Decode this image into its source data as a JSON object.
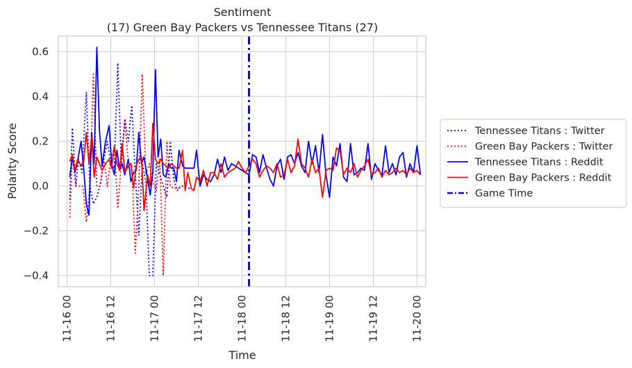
{
  "chart_data": {
    "type": "line",
    "title": "Sentiment",
    "subtitle": "(17) Green Bay Packers vs Tennessee Titans (27)",
    "xlabel": "Time",
    "ylabel": "Polarity Score",
    "grid": true,
    "legend_position": "right",
    "xlim": [
      -0.1,
      4.1
    ],
    "ylim": [
      -0.45,
      0.67
    ],
    "xticks": [
      {
        "v": 0.0,
        "label": "11-16 00"
      },
      {
        "v": 0.5,
        "label": "11-16 12"
      },
      {
        "v": 1.0,
        "label": "11-17 00"
      },
      {
        "v": 1.5,
        "label": "11-17 12"
      },
      {
        "v": 2.0,
        "label": "11-18 00"
      },
      {
        "v": 2.5,
        "label": "11-18 12"
      },
      {
        "v": 3.0,
        "label": "11-19 00"
      },
      {
        "v": 3.5,
        "label": "11-19 12"
      },
      {
        "v": 4.0,
        "label": "11-20 00"
      }
    ],
    "yticks": [
      {
        "v": -0.4,
        "label": "−0.4"
      },
      {
        "v": -0.2,
        "label": "−0.2"
      },
      {
        "v": 0.0,
        "label": "0.0"
      },
      {
        "v": 0.2,
        "label": "0.2"
      },
      {
        "v": 0.4,
        "label": "0.4"
      },
      {
        "v": 0.6,
        "label": "0.6"
      }
    ],
    "game_time": 2.08,
    "series": [
      {
        "name": "Tennessee Titans : Twitter",
        "color": "#0000ff",
        "style": "dotted",
        "x": [
          0.03,
          0.06,
          0.1,
          0.13,
          0.17,
          0.22,
          0.26,
          0.3,
          0.34,
          0.38,
          0.42,
          0.46,
          0.5,
          0.54,
          0.58,
          0.62,
          0.66,
          0.7,
          0.74,
          0.78,
          0.82,
          0.86,
          0.9,
          0.94,
          0.98,
          1.02,
          1.06,
          1.1,
          1.14,
          1.18,
          1.22,
          1.26,
          1.3,
          1.34,
          1.38,
          1.42
        ],
        "y": [
          -0.06,
          0.26,
          0.0,
          0.12,
          0.06,
          0.42,
          0.0,
          -0.08,
          -0.05,
          0.01,
          0.12,
          0.2,
          0.1,
          0.08,
          0.55,
          0.1,
          0.3,
          0.2,
          0.36,
          0.05,
          -0.22,
          0.1,
          0.02,
          -0.4,
          -0.4,
          0.1,
          0.05,
          0.0,
          -0.05,
          0.2,
          0.03,
          -0.02,
          0.0,
          0.0,
          -0.01,
          -0.01
        ]
      },
      {
        "name": "Green Bay Packers : Twitter",
        "color": "#ff0000",
        "style": "dotted",
        "x": [
          0.03,
          0.06,
          0.1,
          0.14,
          0.18,
          0.22,
          0.26,
          0.3,
          0.34,
          0.38,
          0.42,
          0.46,
          0.5,
          0.54,
          0.58,
          0.62,
          0.66,
          0.7,
          0.74,
          0.78,
          0.82,
          0.86,
          0.9,
          0.94,
          0.98,
          1.02,
          1.06,
          1.1,
          1.14,
          1.18,
          1.22,
          1.26,
          1.3
        ],
        "y": [
          -0.14,
          0.14,
          0.0,
          0.0,
          0.0,
          -0.16,
          0.0,
          0.5,
          0.0,
          0.0,
          0.12,
          0.0,
          0.12,
          0.17,
          -0.1,
          0.1,
          0.3,
          0.1,
          0.1,
          -0.3,
          0.0,
          0.5,
          0.05,
          0.1,
          0.02,
          -0.02,
          0.12,
          -0.4,
          0.2,
          0.0,
          -0.01,
          -0.01,
          -0.01
        ]
      },
      {
        "name": "Tennessee Titans : Reddit",
        "color": "#0000ff",
        "style": "solid",
        "x": [
          0.03,
          0.06,
          0.09,
          0.12,
          0.16,
          0.19,
          0.22,
          0.25,
          0.28,
          0.31,
          0.34,
          0.37,
          0.4,
          0.44,
          0.48,
          0.51,
          0.54,
          0.57,
          0.6,
          0.63,
          0.66,
          0.7,
          0.73,
          0.76,
          0.79,
          0.82,
          0.85,
          0.88,
          0.92,
          0.95,
          0.98,
          1.01,
          1.04,
          1.07,
          1.1,
          1.13,
          1.16,
          1.19,
          1.22,
          1.25,
          1.28,
          1.32,
          1.35,
          1.38,
          1.42,
          1.45,
          1.48,
          1.52,
          1.56,
          1.6,
          1.64,
          1.68,
          1.72,
          1.76,
          1.8,
          1.84,
          1.88,
          1.92,
          1.96,
          2.0,
          2.04,
          2.08,
          2.12,
          2.16,
          2.2,
          2.24,
          2.28,
          2.32,
          2.36,
          2.4,
          2.44,
          2.48,
          2.52,
          2.56,
          2.6,
          2.64,
          2.68,
          2.72,
          2.76,
          2.8,
          2.84,
          2.88,
          2.92,
          2.96,
          3.0,
          3.04,
          3.08,
          3.12,
          3.16,
          3.2,
          3.24,
          3.28,
          3.32,
          3.36,
          3.4,
          3.44,
          3.48,
          3.52,
          3.56,
          3.6,
          3.64,
          3.68,
          3.72,
          3.76,
          3.8,
          3.84,
          3.88,
          3.92,
          3.96,
          4.0,
          4.04
        ],
        "y": [
          0.04,
          0.13,
          0.06,
          0.11,
          0.2,
          0.08,
          -0.08,
          -0.13,
          0.24,
          0.1,
          0.62,
          0.25,
          0.09,
          0.2,
          0.27,
          0.1,
          0.05,
          0.16,
          0.07,
          0.1,
          0.05,
          0.12,
          0.02,
          0.06,
          0.07,
          0.24,
          0.1,
          0.13,
          0.03,
          -0.04,
          0.06,
          0.52,
          0.13,
          0.21,
          0.05,
          0.04,
          0.1,
          0.08,
          0.08,
          0.02,
          0.16,
          0.09,
          0.08,
          0.08,
          0.08,
          0.08,
          0.16,
          0.0,
          0.05,
          0.03,
          0.02,
          0.05,
          0.12,
          0.06,
          0.13,
          0.07,
          0.1,
          0.09,
          0.08,
          0.07,
          0.06,
          0.05,
          0.14,
          0.13,
          0.06,
          0.14,
          0.08,
          0.03,
          0.0,
          0.09,
          0.12,
          0.03,
          0.13,
          0.14,
          0.1,
          0.15,
          0.09,
          0.06,
          0.2,
          0.1,
          0.18,
          0.06,
          0.23,
          0.05,
          -0.05,
          0.13,
          0.09,
          0.19,
          0.04,
          0.02,
          0.19,
          0.05,
          0.06,
          0.08,
          0.07,
          0.19,
          0.03,
          0.1,
          0.07,
          0.05,
          0.18,
          0.06,
          0.1,
          0.05,
          0.13,
          0.15,
          0.04,
          0.1,
          0.06,
          0.18,
          0.05
        ],
        "y_fix": true
      },
      {
        "name": "Green Bay Packers : Reddit",
        "color": "#ff0000",
        "style": "solid",
        "x": [
          0.03,
          0.06,
          0.09,
          0.12,
          0.16,
          0.19,
          0.22,
          0.25,
          0.28,
          0.31,
          0.34,
          0.37,
          0.4,
          0.44,
          0.48,
          0.51,
          0.54,
          0.57,
          0.6,
          0.63,
          0.66,
          0.7,
          0.73,
          0.76,
          0.79,
          0.82,
          0.85,
          0.88,
          0.92,
          0.95,
          0.98,
          1.01,
          1.04,
          1.07,
          1.1,
          1.13,
          1.16,
          1.19,
          1.22,
          1.25,
          1.28,
          1.32,
          1.35,
          1.38,
          1.42,
          1.45,
          1.48,
          1.52,
          1.56,
          1.6,
          1.64,
          1.68,
          1.72,
          1.76,
          1.8,
          1.84,
          1.88,
          1.92,
          1.96,
          2.0,
          2.04,
          2.08,
          2.12,
          2.16,
          2.2,
          2.24,
          2.28,
          2.32,
          2.36,
          2.4,
          2.44,
          2.48,
          2.52,
          2.56,
          2.6,
          2.64,
          2.68,
          2.72,
          2.76,
          2.8,
          2.84,
          2.88,
          2.92,
          2.96,
          3.0,
          3.04,
          3.08,
          3.12,
          3.16,
          3.2,
          3.24,
          3.28,
          3.32,
          3.36,
          3.4,
          3.44,
          3.48,
          3.52,
          3.56,
          3.6,
          3.64,
          3.68,
          3.72,
          3.76,
          3.8,
          3.84,
          3.88,
          3.92,
          3.96,
          4.0,
          4.04
        ],
        "y": [
          0.11,
          0.14,
          0.07,
          0.12,
          0.09,
          0.11,
          0.24,
          0.1,
          0.22,
          0.04,
          0.13,
          0.1,
          0.07,
          0.1,
          0.12,
          0.08,
          0.18,
          0.1,
          0.07,
          0.19,
          0.06,
          0.09,
          0.1,
          -0.01,
          0.09,
          0.12,
          0.13,
          -0.11,
          0.05,
          0.0,
          0.28,
          0.12,
          0.1,
          0.12,
          0.1,
          0.09,
          0.08,
          0.1,
          0.09,
          0.08,
          0.08,
          0.16,
          -0.02,
          0.06,
          -0.01,
          -0.02,
          0.04,
          0.02,
          0.07,
          0.0,
          0.06,
          0.06,
          0.03,
          0.1,
          0.04,
          0.06,
          0.07,
          0.08,
          0.11,
          0.08,
          0.06,
          0.09,
          0.12,
          0.1,
          0.04,
          0.07,
          0.09,
          0.08,
          0.06,
          0.1,
          0.04,
          0.05,
          0.12,
          0.06,
          0.09,
          0.21,
          0.1,
          0.08,
          0.04,
          0.12,
          0.06,
          0.08,
          -0.05,
          0.07,
          0.08,
          0.07,
          0.17,
          0.16,
          0.05,
          0.08,
          0.06,
          0.1,
          0.04,
          0.07,
          0.09,
          0.12,
          0.05,
          0.06,
          0.08,
          0.04,
          0.07,
          0.05,
          0.06,
          0.08,
          0.06,
          0.07,
          0.05,
          0.08,
          0.06,
          0.07,
          0.05
        ],
        "y_fix": true
      }
    ],
    "legend": [
      {
        "label": "Tennessee Titans : Twitter",
        "color": "#0000ff",
        "style": "dotted"
      },
      {
        "label": "Green Bay Packers : Twitter",
        "color": "#ff0000",
        "style": "dotted"
      },
      {
        "label": "Tennessee Titans : Reddit",
        "color": "#0000ff",
        "style": "solid"
      },
      {
        "label": "Green Bay Packers : Reddit",
        "color": "#ff0000",
        "style": "solid"
      },
      {
        "label": "Game Time",
        "color": "#0000ff",
        "style": "dashdot"
      }
    ]
  }
}
